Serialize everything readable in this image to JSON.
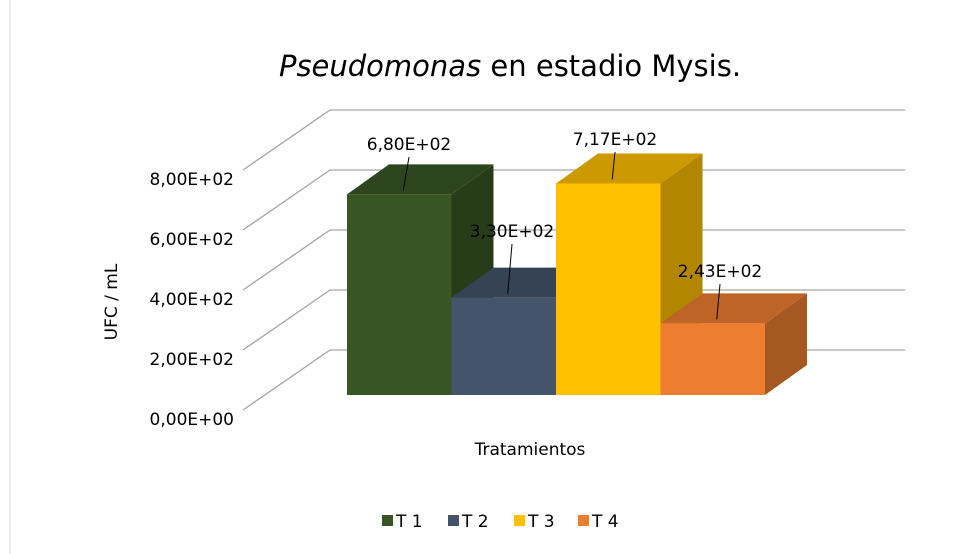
{
  "chart_data": {
    "type": "bar3d",
    "title": [
      "Pseudomonas",
      " en estadio Mysis."
    ],
    "y_label": "UFC / mL",
    "x_label": "Tratamientos",
    "ylim": [
      0,
      800
    ],
    "yticks": [
      {
        "value": 0,
        "label": "0,00E+00"
      },
      {
        "value": 200,
        "label": "2,00E+02"
      },
      {
        "value": 400,
        "label": "4,00E+02"
      },
      {
        "value": 600,
        "label": "6,00E+02"
      },
      {
        "value": 800,
        "label": "8,00E+02"
      }
    ],
    "grid": true,
    "legend": "bottom",
    "series": [
      {
        "name": "T 1",
        "color": "#375623",
        "values": [
          680
        ],
        "value_labels": [
          "6,80E+02"
        ]
      },
      {
        "name": "T 2",
        "color": "#44546a",
        "values": [
          330
        ],
        "value_labels": [
          "3,30E+02"
        ]
      },
      {
        "name": "T 3",
        "color": "#ffc000",
        "values": [
          717
        ],
        "value_labels": [
          "7,17E+02"
        ]
      },
      {
        "name": "T 4",
        "color": "#ed7d31",
        "values": [
          243
        ],
        "value_labels": [
          "2,43E+02"
        ]
      }
    ]
  }
}
